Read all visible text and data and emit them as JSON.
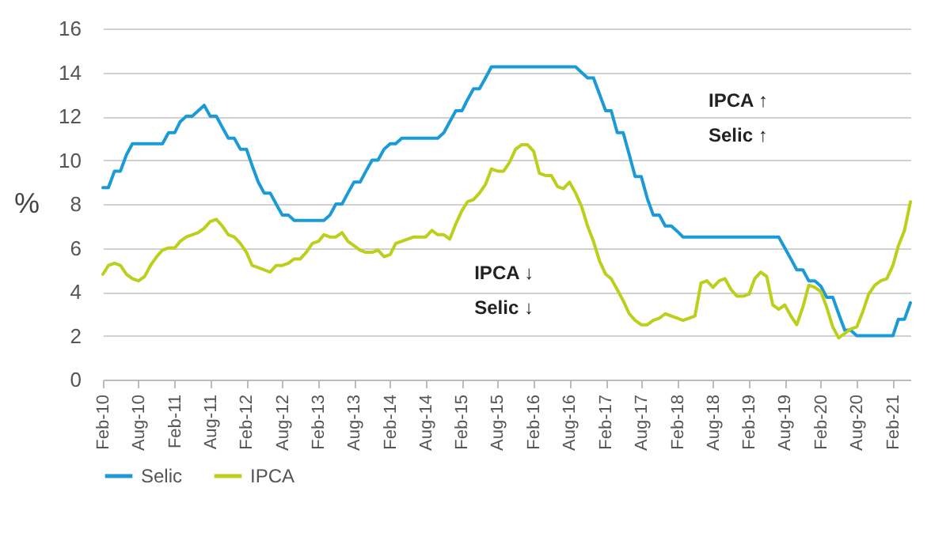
{
  "chart_data": {
    "type": "line",
    "ylabel": "%",
    "x": [
      "2010-02",
      "2010-03",
      "2010-04",
      "2010-05",
      "2010-06",
      "2010-07",
      "2010-08",
      "2010-09",
      "2010-10",
      "2010-11",
      "2010-12",
      "2011-01",
      "2011-02",
      "2011-03",
      "2011-04",
      "2011-05",
      "2011-06",
      "2011-07",
      "2011-08",
      "2011-09",
      "2011-10",
      "2011-11",
      "2011-12",
      "2012-01",
      "2012-02",
      "2012-03",
      "2012-04",
      "2012-05",
      "2012-06",
      "2012-07",
      "2012-08",
      "2012-09",
      "2012-10",
      "2012-11",
      "2012-12",
      "2013-01",
      "2013-02",
      "2013-03",
      "2013-04",
      "2013-05",
      "2013-06",
      "2013-07",
      "2013-08",
      "2013-09",
      "2013-10",
      "2013-11",
      "2013-12",
      "2014-01",
      "2014-02",
      "2014-03",
      "2014-04",
      "2014-05",
      "2014-06",
      "2014-07",
      "2014-08",
      "2014-09",
      "2014-10",
      "2014-11",
      "2014-12",
      "2015-01",
      "2015-02",
      "2015-03",
      "2015-04",
      "2015-05",
      "2015-06",
      "2015-07",
      "2015-08",
      "2015-09",
      "2015-10",
      "2015-11",
      "2015-12",
      "2016-01",
      "2016-02",
      "2016-03",
      "2016-04",
      "2016-05",
      "2016-06",
      "2016-07",
      "2016-08",
      "2016-09",
      "2016-10",
      "2016-11",
      "2016-12",
      "2017-01",
      "2017-02",
      "2017-03",
      "2017-04",
      "2017-05",
      "2017-06",
      "2017-07",
      "2017-08",
      "2017-09",
      "2017-10",
      "2017-11",
      "2017-12",
      "2018-01",
      "2018-02",
      "2018-03",
      "2018-04",
      "2018-05",
      "2018-06",
      "2018-07",
      "2018-08",
      "2018-09",
      "2018-10",
      "2018-11",
      "2018-12",
      "2019-01",
      "2019-02",
      "2019-03",
      "2019-04",
      "2019-05",
      "2019-06",
      "2019-07",
      "2019-08",
      "2019-09",
      "2019-10",
      "2019-11",
      "2019-12",
      "2020-01",
      "2020-02",
      "2020-03",
      "2020-04",
      "2020-05",
      "2020-06",
      "2020-07",
      "2020-08",
      "2020-09",
      "2020-10",
      "2020-11",
      "2020-12",
      "2021-01",
      "2021-02",
      "2021-03",
      "2021-04",
      "2021-05"
    ],
    "series": [
      {
        "name": "Selic",
        "color": "#1a9ad6",
        "values": [
          8.75,
          8.75,
          9.5,
          9.5,
          10.25,
          10.75,
          10.75,
          10.75,
          10.75,
          10.75,
          10.75,
          11.25,
          11.25,
          11.75,
          12,
          12,
          12.25,
          12.5,
          12,
          12,
          11.5,
          11,
          11,
          10.5,
          10.5,
          9.75,
          9,
          8.5,
          8.5,
          8,
          7.5,
          7.5,
          7.25,
          7.25,
          7.25,
          7.25,
          7.25,
          7.25,
          7.5,
          8,
          8,
          8.5,
          9,
          9,
          9.5,
          10,
          10,
          10.5,
          10.75,
          10.75,
          11,
          11,
          11,
          11,
          11,
          11,
          11,
          11.25,
          11.75,
          12.25,
          12.25,
          12.75,
          13.25,
          13.25,
          13.75,
          14.25,
          14.25,
          14.25,
          14.25,
          14.25,
          14.25,
          14.25,
          14.25,
          14.25,
          14.25,
          14.25,
          14.25,
          14.25,
          14.25,
          14.25,
          14,
          13.75,
          13.75,
          13,
          12.25,
          12.25,
          11.25,
          11.25,
          10.25,
          9.25,
          9.25,
          8.25,
          7.5,
          7.5,
          7,
          7,
          6.75,
          6.5,
          6.5,
          6.5,
          6.5,
          6.5,
          6.5,
          6.5,
          6.5,
          6.5,
          6.5,
          6.5,
          6.5,
          6.5,
          6.5,
          6.5,
          6.5,
          6.5,
          6,
          5.5,
          5,
          5,
          4.5,
          4.5,
          4.25,
          3.75,
          3.75,
          3,
          2.25,
          2.25,
          2,
          2,
          2,
          2,
          2,
          2,
          2,
          2.75,
          2.75,
          3.5
        ]
      },
      {
        "name": "IPCA",
        "color": "#bccf1a",
        "values": [
          4.8,
          5.2,
          5.3,
          5.2,
          4.8,
          4.6,
          4.5,
          4.7,
          5.2,
          5.6,
          5.9,
          6.0,
          6.0,
          6.3,
          6.5,
          6.6,
          6.7,
          6.9,
          7.2,
          7.3,
          7.0,
          6.6,
          6.5,
          6.2,
          5.8,
          5.2,
          5.1,
          5.0,
          4.9,
          5.2,
          5.2,
          5.3,
          5.5,
          5.5,
          5.8,
          6.2,
          6.3,
          6.6,
          6.5,
          6.5,
          6.7,
          6.3,
          6.1,
          5.9,
          5.8,
          5.8,
          5.9,
          5.6,
          5.7,
          6.2,
          6.3,
          6.4,
          6.5,
          6.5,
          6.5,
          6.8,
          6.6,
          6.6,
          6.4,
          7.1,
          7.7,
          8.1,
          8.2,
          8.5,
          8.9,
          9.6,
          9.5,
          9.5,
          9.9,
          10.5,
          10.7,
          10.7,
          10.4,
          9.4,
          9.3,
          9.3,
          8.8,
          8.7,
          9.0,
          8.5,
          7.9,
          7.0,
          6.3,
          5.4,
          4.8,
          4.6,
          4.1,
          3.6,
          3.0,
          2.7,
          2.5,
          2.5,
          2.7,
          2.8,
          3.0,
          2.9,
          2.8,
          2.7,
          2.8,
          2.9,
          4.4,
          4.5,
          4.2,
          4.5,
          4.6,
          4.1,
          3.8,
          3.8,
          3.9,
          4.6,
          4.9,
          4.7,
          3.4,
          3.2,
          3.4,
          2.9,
          2.5,
          3.3,
          4.3,
          4.2,
          4.0,
          3.3,
          2.4,
          1.9,
          2.1,
          2.3,
          2.4,
          3.1,
          3.9,
          4.3,
          4.5,
          4.6,
          5.2,
          6.1,
          6.8,
          8.1
        ]
      }
    ],
    "xlim": [
      "2010-02",
      "2021-05"
    ],
    "xticks": [
      {
        "value": "2010-02",
        "label": "Feb-10"
      },
      {
        "value": "2010-08",
        "label": "Aug-10"
      },
      {
        "value": "2011-02",
        "label": "Feb-11"
      },
      {
        "value": "2011-08",
        "label": "Aug-11"
      },
      {
        "value": "2012-02",
        "label": "Feb-12"
      },
      {
        "value": "2012-08",
        "label": "Aug-12"
      },
      {
        "value": "2013-02",
        "label": "Feb-13"
      },
      {
        "value": "2013-08",
        "label": "Aug-13"
      },
      {
        "value": "2014-02",
        "label": "Feb-14"
      },
      {
        "value": "2014-08",
        "label": "Aug-14"
      },
      {
        "value": "2015-02",
        "label": "Feb-15"
      },
      {
        "value": "2015-08",
        "label": "Aug-15"
      },
      {
        "value": "2016-02",
        "label": "Feb-16"
      },
      {
        "value": "2016-08",
        "label": "Aug-16"
      },
      {
        "value": "2017-02",
        "label": "Feb-17"
      },
      {
        "value": "2017-08",
        "label": "Aug-17"
      },
      {
        "value": "2018-02",
        "label": "Feb-18"
      },
      {
        "value": "2018-08",
        "label": "Aug-18"
      },
      {
        "value": "2019-02",
        "label": "Feb-19"
      },
      {
        "value": "2019-08",
        "label": "Aug-19"
      },
      {
        "value": "2020-02",
        "label": "Feb-20"
      },
      {
        "value": "2020-08",
        "label": "Aug-20"
      },
      {
        "value": "2021-02",
        "label": "Feb-21"
      }
    ],
    "ylim": [
      0,
      16
    ],
    "yticks": [
      0,
      2,
      4,
      6,
      8,
      10,
      12,
      14,
      16
    ],
    "grid": "y",
    "legend": "bottom",
    "annotations": [
      "IPCA ↑",
      "Selic ↑",
      "IPCA ↓",
      "Selic ↓"
    ]
  }
}
